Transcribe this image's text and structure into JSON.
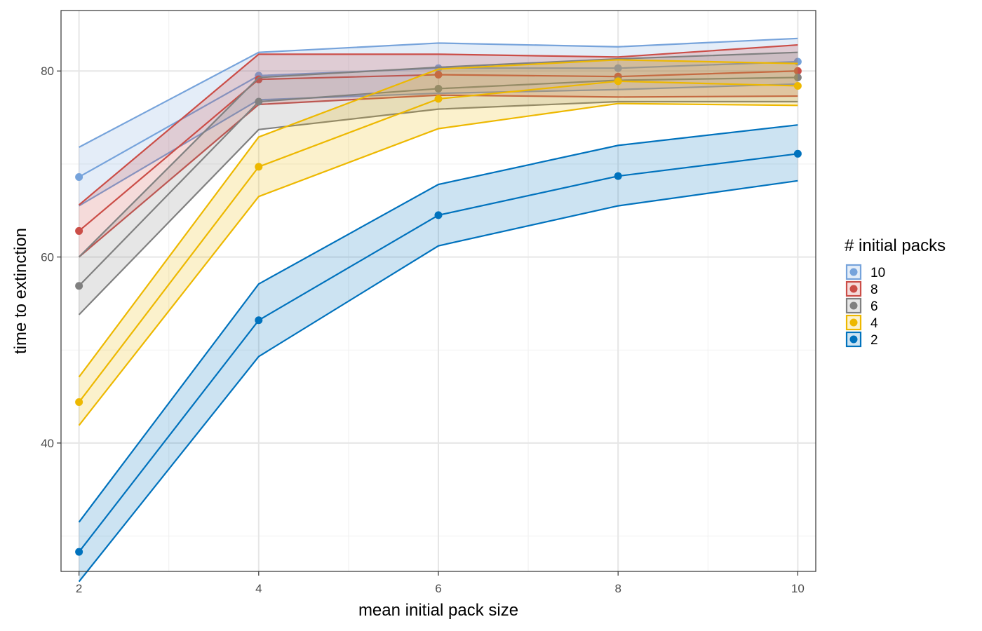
{
  "chart_data": {
    "type": "line",
    "title": "",
    "xlabel": "mean initial pack size",
    "ylabel": "time to extinction",
    "x": [
      2,
      4,
      6,
      8,
      10
    ],
    "xlim": [
      1.8,
      10.2
    ],
    "ylim": [
      26.2,
      86.5
    ],
    "x_ticks": [
      2,
      4,
      6,
      8,
      10
    ],
    "y_ticks": [
      40,
      60,
      80
    ],
    "grid": true,
    "legend_title": "# initial packs",
    "legend_position": "right",
    "series": [
      {
        "name": "2",
        "color": "#0072BD",
        "values": [
          28.3,
          53.2,
          64.5,
          68.7,
          71.1
        ],
        "lower": [
          25.1,
          49.3,
          61.2,
          65.5,
          68.2
        ],
        "upper": [
          31.5,
          57.1,
          67.8,
          72.0,
          74.2
        ]
      },
      {
        "name": "4",
        "color": "#EDB800",
        "values": [
          44.4,
          69.7,
          77.0,
          78.9,
          78.4
        ],
        "lower": [
          41.9,
          66.5,
          73.8,
          76.5,
          76.3
        ],
        "upper": [
          47.1,
          72.9,
          80.2,
          81.2,
          80.8
        ]
      },
      {
        "name": "6",
        "color": "#808080",
        "values": [
          56.9,
          76.7,
          78.1,
          79.0,
          79.3
        ],
        "lower": [
          53.8,
          73.7,
          75.9,
          76.7,
          76.7
        ],
        "upper": [
          60.0,
          79.3,
          80.4,
          81.3,
          82.0
        ]
      },
      {
        "name": "8",
        "color": "#CB4D47",
        "values": [
          62.8,
          79.1,
          79.6,
          79.4,
          80.0
        ],
        "lower": [
          60.0,
          76.4,
          77.4,
          77.2,
          77.3
        ],
        "upper": [
          65.6,
          81.8,
          81.8,
          81.5,
          82.8
        ]
      },
      {
        "name": "10",
        "color": "#76A3DB",
        "values": [
          68.6,
          79.5,
          80.3,
          80.3,
          81.0
        ],
        "lower": [
          65.5,
          76.9,
          77.6,
          78.0,
          78.6
        ],
        "upper": [
          71.8,
          82.0,
          83.0,
          82.6,
          83.5
        ]
      }
    ]
  }
}
